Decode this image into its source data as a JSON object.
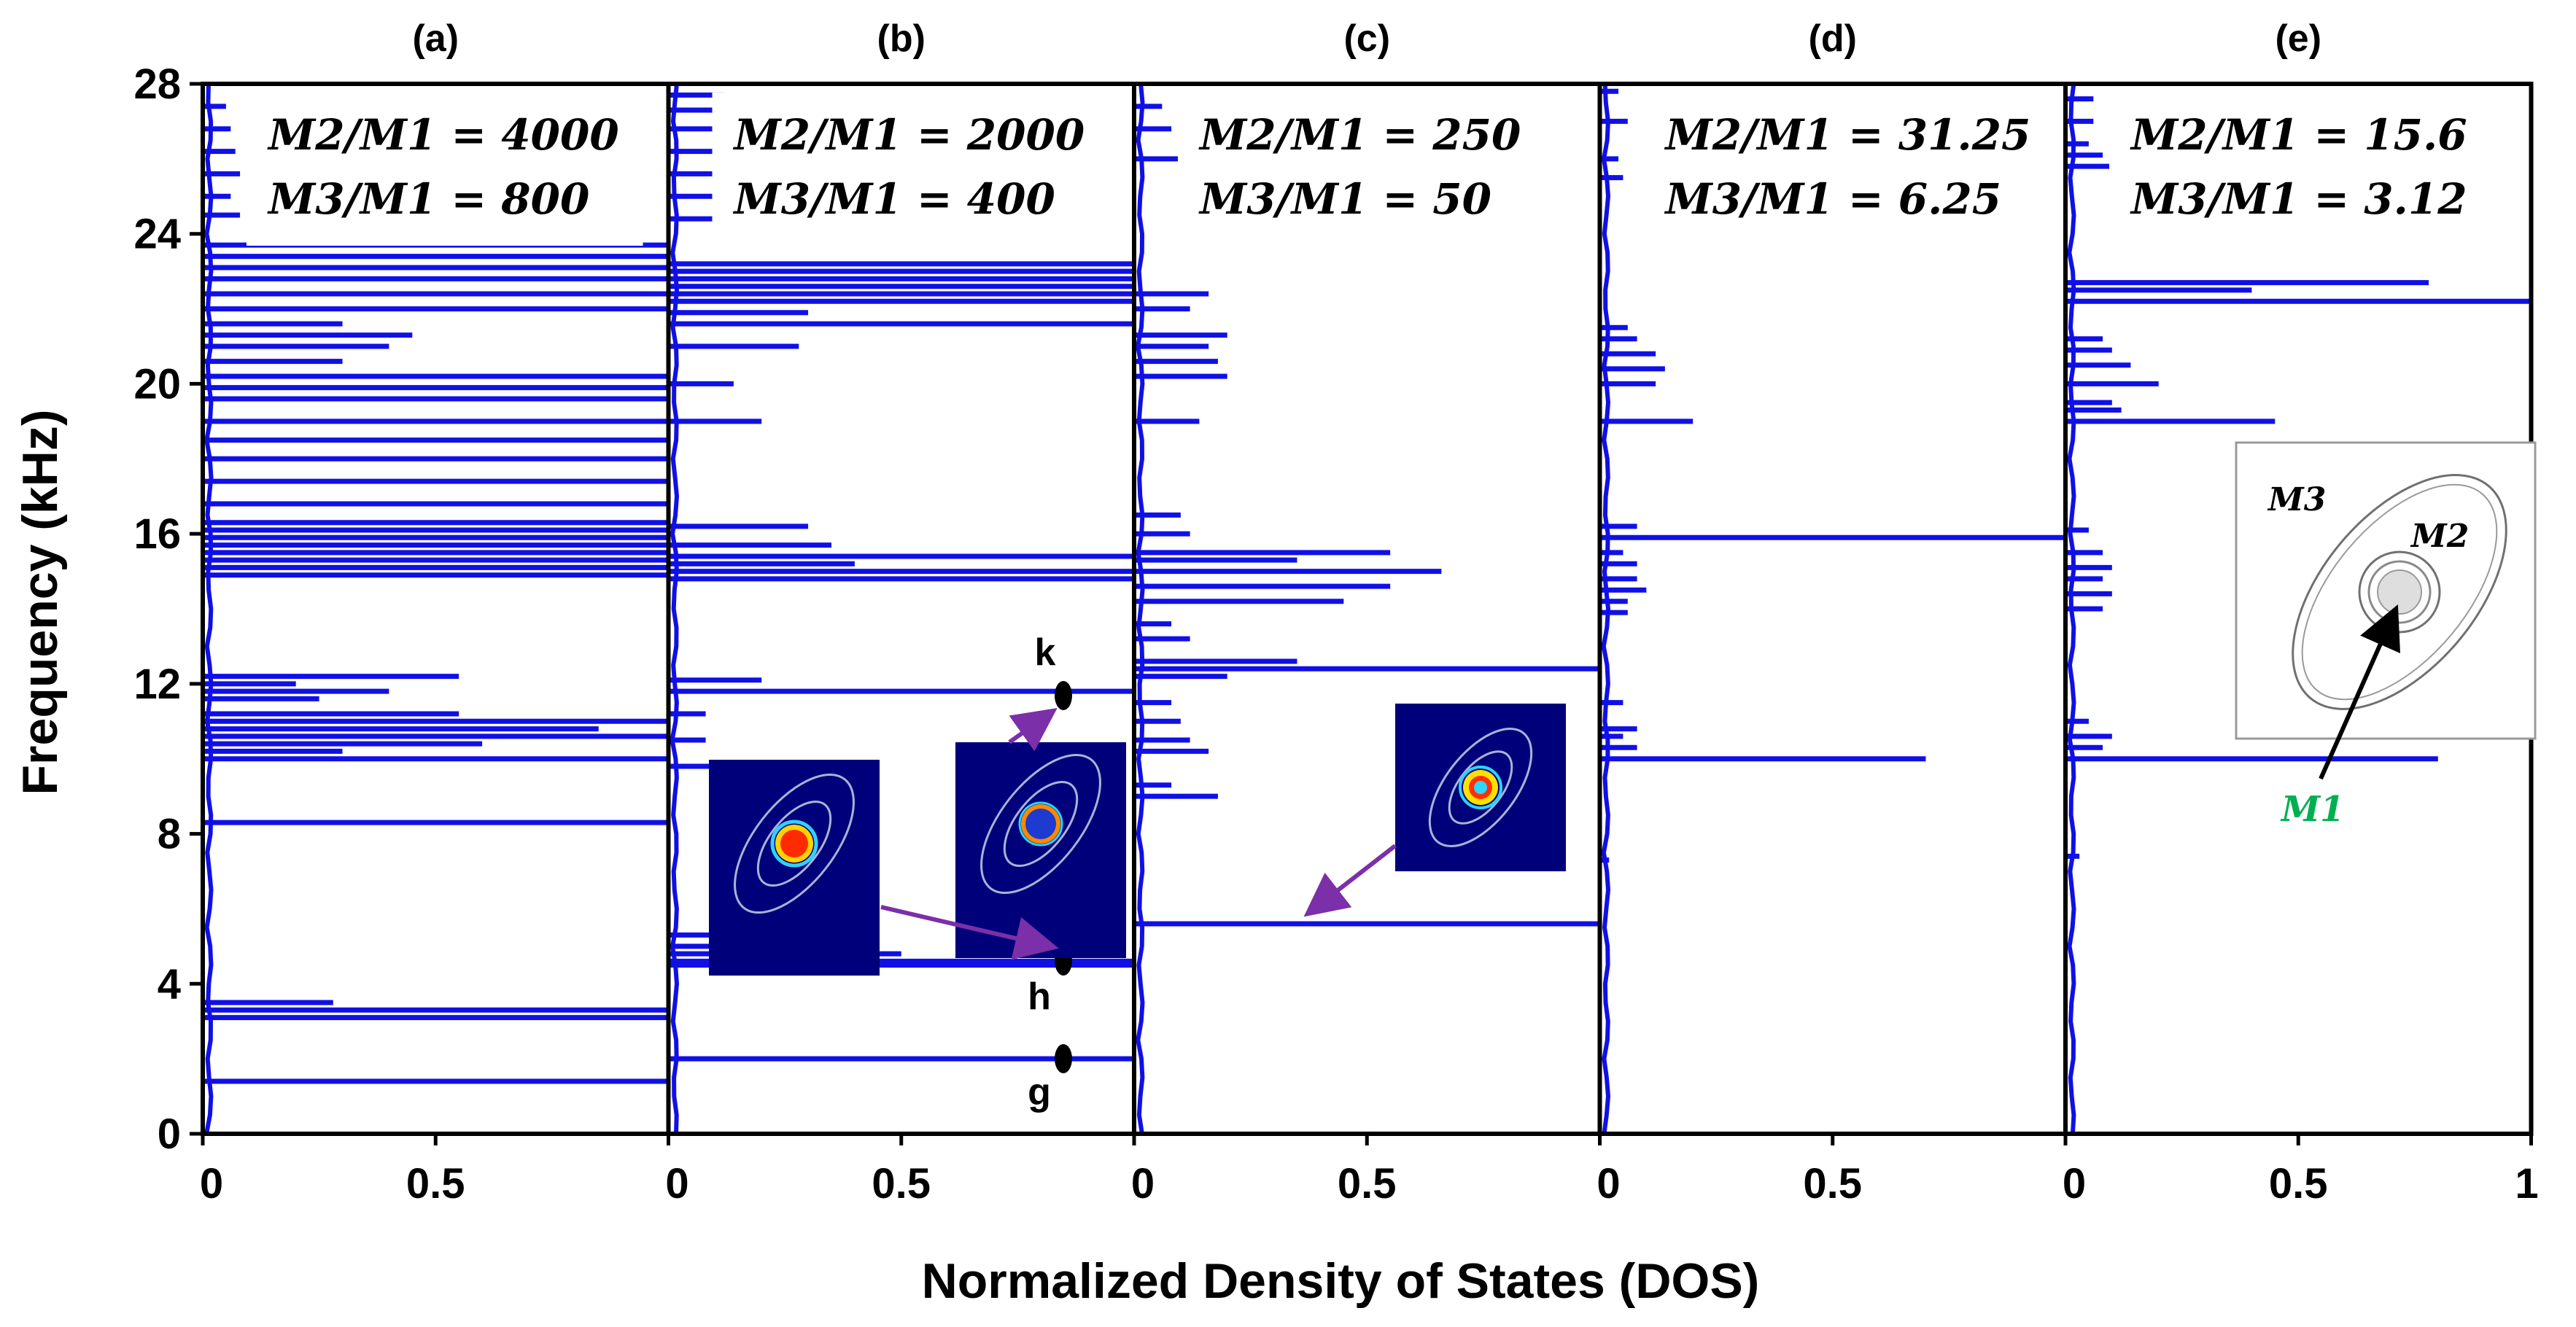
{
  "chart_data": {
    "type": "line",
    "title": "",
    "xlabel": "Normalized Density of States (DOS)",
    "ylabel": "Frequency (kHz)",
    "ylim": [
      0,
      28
    ],
    "yticks": [
      "0",
      "4",
      "8",
      "12",
      "16",
      "20",
      "24",
      "28"
    ],
    "xlim": [
      0,
      1
    ],
    "panels": [
      {
        "label": "(a)",
        "ratio1": "M2/M1 = 4000",
        "ratio2": "M3/M1 = 800",
        "xticks": [
          "0",
          "0.5",
          ""
        ],
        "peaks": [
          [
            1.4,
            1.0
          ],
          [
            3.1,
            1.0
          ],
          [
            3.3,
            1.0
          ],
          [
            3.5,
            0.28
          ],
          [
            8.3,
            1.0
          ],
          [
            10.0,
            1.0
          ],
          [
            10.2,
            0.3
          ],
          [
            10.4,
            0.6
          ],
          [
            10.6,
            1.0
          ],
          [
            10.8,
            0.85
          ],
          [
            11.0,
            1.0
          ],
          [
            11.2,
            0.55
          ],
          [
            11.6,
            0.25
          ],
          [
            11.8,
            0.4
          ],
          [
            12.0,
            0.2
          ],
          [
            12.2,
            0.55
          ],
          [
            14.9,
            1.0
          ],
          [
            15.1,
            1.0
          ],
          [
            15.3,
            1.0
          ],
          [
            15.5,
            1.0
          ],
          [
            15.7,
            1.0
          ],
          [
            15.9,
            1.0
          ],
          [
            16.1,
            1.0
          ],
          [
            16.3,
            1.0
          ],
          [
            16.8,
            1.0
          ],
          [
            17.4,
            1.0
          ],
          [
            18.0,
            1.0
          ],
          [
            18.5,
            1.0
          ],
          [
            19.0,
            1.0
          ],
          [
            19.6,
            1.0
          ],
          [
            19.9,
            1.0
          ],
          [
            20.2,
            1.0
          ],
          [
            20.6,
            0.3
          ],
          [
            21.0,
            0.4
          ],
          [
            21.3,
            0.45
          ],
          [
            21.6,
            0.3
          ],
          [
            22.0,
            1.0
          ],
          [
            22.4,
            1.0
          ],
          [
            22.8,
            1.0
          ],
          [
            23.1,
            1.0
          ],
          [
            23.4,
            1.0
          ],
          [
            23.7,
            1.0
          ],
          [
            24.5,
            0.08
          ],
          [
            25.0,
            0.06
          ],
          [
            25.6,
            0.08
          ],
          [
            26.2,
            0.07
          ],
          [
            26.8,
            0.06
          ],
          [
            27.4,
            0.05
          ]
        ]
      },
      {
        "label": "(b)",
        "ratio1": "M2/M1 = 2000",
        "ratio2": "M3/M1 = 400",
        "xticks": [
          "0",
          "0.5",
          ""
        ],
        "peaks": [
          [
            2.0,
            1.0
          ],
          [
            4.5,
            1.0
          ],
          [
            4.6,
            1.0
          ],
          [
            4.8,
            0.5
          ],
          [
            5.0,
            0.38
          ],
          [
            5.3,
            0.18
          ],
          [
            9.8,
            0.1
          ],
          [
            10.5,
            0.08
          ],
          [
            11.2,
            0.08
          ],
          [
            11.8,
            1.0
          ],
          [
            12.1,
            0.2
          ],
          [
            14.8,
            1.0
          ],
          [
            15.0,
            1.0
          ],
          [
            15.2,
            0.4
          ],
          [
            15.4,
            1.0
          ],
          [
            15.7,
            0.35
          ],
          [
            16.2,
            0.3
          ],
          [
            19.0,
            0.2
          ],
          [
            20.0,
            0.14
          ],
          [
            21.0,
            0.28
          ],
          [
            21.6,
            1.0
          ],
          [
            21.9,
            0.3
          ],
          [
            22.2,
            1.0
          ],
          [
            22.4,
            1.0
          ],
          [
            22.6,
            1.0
          ],
          [
            22.8,
            1.0
          ],
          [
            23.0,
            1.0
          ],
          [
            23.2,
            1.0
          ],
          [
            24.4,
            0.2
          ],
          [
            25.0,
            0.12
          ],
          [
            25.6,
            0.22
          ],
          [
            26.2,
            0.18
          ],
          [
            26.8,
            0.15
          ],
          [
            27.3,
            0.18
          ],
          [
            27.7,
            0.12
          ]
        ]
      },
      {
        "label": "(c)",
        "ratio1": "M2/M1 = 250",
        "ratio2": "M3/M1 = 50",
        "xticks": [
          "0",
          "0.5",
          ""
        ],
        "peaks": [
          [
            5.6,
            1.0
          ],
          [
            9.0,
            0.18
          ],
          [
            9.3,
            0.08
          ],
          [
            10.2,
            0.16
          ],
          [
            10.5,
            0.12
          ],
          [
            11.0,
            0.1
          ],
          [
            11.5,
            0.08
          ],
          [
            12.2,
            0.2
          ],
          [
            12.4,
            1.0
          ],
          [
            12.6,
            0.35
          ],
          [
            13.2,
            0.12
          ],
          [
            13.6,
            0.08
          ],
          [
            14.2,
            0.45
          ],
          [
            14.6,
            0.55
          ],
          [
            15.0,
            0.66
          ],
          [
            15.3,
            0.35
          ],
          [
            15.5,
            0.55
          ],
          [
            16.0,
            0.12
          ],
          [
            16.5,
            0.1
          ],
          [
            19.0,
            0.14
          ],
          [
            20.2,
            0.2
          ],
          [
            20.6,
            0.18
          ],
          [
            21.0,
            0.16
          ],
          [
            21.3,
            0.2
          ],
          [
            22.0,
            0.12
          ],
          [
            22.4,
            0.16
          ],
          [
            26.0,
            0.1
          ],
          [
            26.8,
            0.08
          ],
          [
            27.4,
            0.06
          ]
        ]
      },
      {
        "label": "(d)",
        "ratio1": "M2/M1 = 31.25",
        "ratio2": "M3/M1 = 6.25",
        "xticks": [
          "0",
          "0.5",
          ""
        ],
        "peaks": [
          [
            7.3,
            0.02
          ],
          [
            10.0,
            0.7
          ],
          [
            10.3,
            0.08
          ],
          [
            10.6,
            0.05
          ],
          [
            10.8,
            0.08
          ],
          [
            11.5,
            0.05
          ],
          [
            13.9,
            0.06
          ],
          [
            14.2,
            0.06
          ],
          [
            14.5,
            0.1
          ],
          [
            14.8,
            0.08
          ],
          [
            15.2,
            0.08
          ],
          [
            15.5,
            0.05
          ],
          [
            15.9,
            1.0
          ],
          [
            16.2,
            0.08
          ],
          [
            19.0,
            0.2
          ],
          [
            20.0,
            0.12
          ],
          [
            20.4,
            0.14
          ],
          [
            20.8,
            0.12
          ],
          [
            21.2,
            0.08
          ],
          [
            21.5,
            0.06
          ],
          [
            25.5,
            0.05
          ],
          [
            26.0,
            0.04
          ],
          [
            27.0,
            0.06
          ],
          [
            27.8,
            0.04
          ]
        ]
      },
      {
        "label": "(e)",
        "ratio1": "M2/M1 = 15.6",
        "ratio2": "M3/M1 = 3.12",
        "xticks": [
          "0",
          "0.5",
          "1"
        ],
        "peaks": [
          [
            7.4,
            0.03
          ],
          [
            10.0,
            0.8
          ],
          [
            10.3,
            0.08
          ],
          [
            10.6,
            0.1
          ],
          [
            11.0,
            0.05
          ],
          [
            14.0,
            0.08
          ],
          [
            14.4,
            0.1
          ],
          [
            14.8,
            0.08
          ],
          [
            15.1,
            0.1
          ],
          [
            15.5,
            0.08
          ],
          [
            16.1,
            0.05
          ],
          [
            19.0,
            0.45
          ],
          [
            19.3,
            0.12
          ],
          [
            19.5,
            0.1
          ],
          [
            20.0,
            0.2
          ],
          [
            20.5,
            0.14
          ],
          [
            20.9,
            0.1
          ],
          [
            21.2,
            0.08
          ],
          [
            22.2,
            1.0
          ],
          [
            22.5,
            0.4
          ],
          [
            22.7,
            0.78
          ],
          [
            25.8,
            0.1
          ],
          [
            26.1,
            0.08
          ],
          [
            26.4,
            0.05
          ],
          [
            27.0,
            0.06
          ],
          [
            27.6,
            0.06
          ]
        ]
      }
    ],
    "annotations": {
      "marker_k": "k",
      "marker_h": "h",
      "marker_g": "g",
      "inset_m3": "M3",
      "inset_m2": "M2",
      "inset_m1": "M1"
    }
  },
  "colors": {
    "line": "#1010e6",
    "arrow": "#7b2fa8",
    "inset_bg": "#00007a"
  }
}
